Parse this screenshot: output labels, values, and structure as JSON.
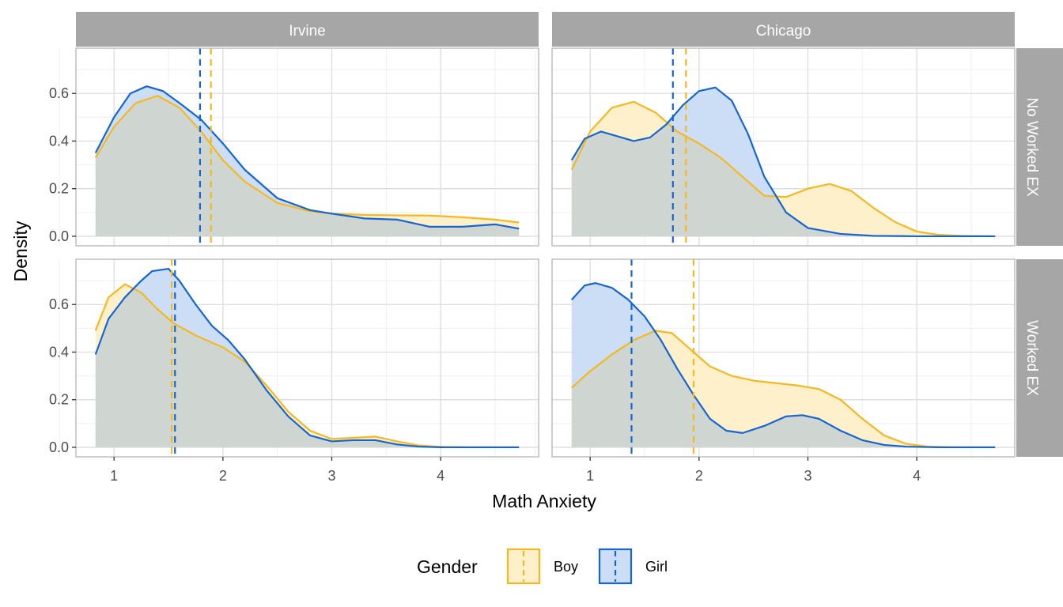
{
  "chart_data": {
    "type": "area",
    "xlabel": "Math Anxiety",
    "ylabel": "Density",
    "xlim": [
      0.65,
      4.9
    ],
    "ylim": [
      -0.04,
      0.79
    ],
    "x_ticks": [
      "1",
      "2",
      "3",
      "4"
    ],
    "y_ticks": [
      "0.0",
      "0.2",
      "0.4",
      "0.6"
    ],
    "columns": [
      "Irvine",
      "Chicago"
    ],
    "rows": [
      "No Worked EX",
      "Worked EX"
    ],
    "legend": {
      "title": "Gender",
      "position": "bottom",
      "entries": [
        "Boy",
        "Girl"
      ]
    },
    "colors": {
      "Boy": "#F5B820",
      "Girl": "#1566D0",
      "Boy_fill": "#FFF0CC",
      "Girl_fill": "#CCDDF6",
      "overlap_fill": "#CFD6D2",
      "strip": "#A6A6A6",
      "grid": "#DDDDDD",
      "panel_border": "#B3B3B3"
    },
    "panels": [
      {
        "column": "Irvine",
        "row": "No Worked EX",
        "means": {
          "Boy": 1.89,
          "Girl": 1.79
        },
        "series": [
          {
            "name": "Boy",
            "x": [
              0.83,
              1.0,
              1.2,
              1.4,
              1.6,
              1.8,
              2.0,
              2.2,
              2.5,
              2.8,
              3.0,
              3.3,
              3.6,
              3.9,
              4.2,
              4.5,
              4.72
            ],
            "y": [
              0.33,
              0.46,
              0.56,
              0.59,
              0.54,
              0.44,
              0.32,
              0.23,
              0.14,
              0.105,
              0.095,
              0.09,
              0.088,
              0.087,
              0.08,
              0.07,
              0.058
            ]
          },
          {
            "name": "Girl",
            "x": [
              0.83,
              1.0,
              1.15,
              1.3,
              1.45,
              1.6,
              1.8,
              2.0,
              2.2,
              2.5,
              2.8,
              3.0,
              3.3,
              3.6,
              3.9,
              4.2,
              4.5,
              4.72
            ],
            "y": [
              0.35,
              0.5,
              0.6,
              0.63,
              0.61,
              0.56,
              0.49,
              0.39,
              0.28,
              0.16,
              0.11,
              0.095,
              0.075,
              0.07,
              0.04,
              0.04,
              0.05,
              0.032
            ]
          }
        ]
      },
      {
        "column": "Chicago",
        "row": "No Worked EX",
        "means": {
          "Boy": 1.88,
          "Girl": 1.76
        },
        "series": [
          {
            "name": "Boy",
            "x": [
              0.83,
              1.0,
              1.2,
              1.4,
              1.6,
              1.8,
              2.0,
              2.2,
              2.4,
              2.6,
              2.8,
              3.0,
              3.2,
              3.4,
              3.6,
              3.8,
              4.0,
              4.2,
              4.4,
              4.72
            ],
            "y": [
              0.28,
              0.44,
              0.54,
              0.565,
              0.52,
              0.44,
              0.39,
              0.33,
              0.25,
              0.17,
              0.165,
              0.2,
              0.22,
              0.19,
              0.12,
              0.06,
              0.02,
              0.006,
              0.002,
              0.0
            ]
          },
          {
            "name": "Girl",
            "x": [
              0.83,
              0.95,
              1.1,
              1.25,
              1.4,
              1.55,
              1.7,
              1.85,
              2.0,
              2.15,
              2.3,
              2.45,
              2.6,
              2.8,
              3.0,
              3.3,
              3.6,
              4.0,
              4.4,
              4.72
            ],
            "y": [
              0.32,
              0.41,
              0.44,
              0.42,
              0.4,
              0.415,
              0.47,
              0.55,
              0.61,
              0.625,
              0.57,
              0.43,
              0.25,
              0.1,
              0.035,
              0.01,
              0.002,
              0.0,
              0.0,
              0.0
            ]
          }
        ]
      },
      {
        "column": "Irvine",
        "row": "Worked EX",
        "means": {
          "Boy": 1.53,
          "Girl": 1.56
        },
        "series": [
          {
            "name": "Boy",
            "x": [
              0.83,
              0.95,
              1.1,
              1.25,
              1.4,
              1.55,
              1.75,
              2.0,
              2.2,
              2.4,
              2.6,
              2.8,
              3.0,
              3.2,
              3.4,
              3.6,
              3.8,
              4.0,
              4.3,
              4.72
            ],
            "y": [
              0.49,
              0.63,
              0.685,
              0.65,
              0.58,
              0.52,
              0.47,
              0.42,
              0.36,
              0.26,
              0.15,
              0.07,
              0.035,
              0.04,
              0.045,
              0.025,
              0.008,
              0.002,
              0.0,
              0.0
            ]
          },
          {
            "name": "Girl",
            "x": [
              0.83,
              0.95,
              1.1,
              1.25,
              1.35,
              1.5,
              1.6,
              1.75,
              1.9,
              2.05,
              2.2,
              2.4,
              2.6,
              2.8,
              3.0,
              3.2,
              3.4,
              3.6,
              3.8,
              4.0,
              4.3,
              4.72
            ],
            "y": [
              0.39,
              0.54,
              0.63,
              0.7,
              0.74,
              0.75,
              0.7,
              0.6,
              0.51,
              0.45,
              0.37,
              0.24,
              0.13,
              0.05,
              0.025,
              0.03,
              0.03,
              0.012,
              0.003,
              0.0,
              0.0,
              0.0
            ]
          }
        ]
      },
      {
        "column": "Chicago",
        "row": "Worked EX",
        "means": {
          "Boy": 1.95,
          "Girl": 1.38
        },
        "series": [
          {
            "name": "Boy",
            "x": [
              0.83,
              1.0,
              1.2,
              1.4,
              1.6,
              1.75,
              1.9,
              2.1,
              2.3,
              2.5,
              2.7,
              2.9,
              3.1,
              3.3,
              3.5,
              3.7,
              3.9,
              4.1,
              4.4,
              4.72
            ],
            "y": [
              0.25,
              0.32,
              0.39,
              0.45,
              0.49,
              0.48,
              0.42,
              0.34,
              0.3,
              0.28,
              0.27,
              0.26,
              0.245,
              0.2,
              0.12,
              0.05,
              0.015,
              0.003,
              0.0,
              0.0
            ]
          },
          {
            "name": "Girl",
            "x": [
              0.83,
              0.95,
              1.05,
              1.2,
              1.35,
              1.5,
              1.65,
              1.8,
              1.95,
              2.1,
              2.25,
              2.4,
              2.6,
              2.8,
              2.95,
              3.1,
              3.3,
              3.5,
              3.7,
              3.9,
              4.2,
              4.72
            ],
            "y": [
              0.62,
              0.68,
              0.69,
              0.67,
              0.62,
              0.55,
              0.45,
              0.33,
              0.22,
              0.12,
              0.07,
              0.06,
              0.09,
              0.13,
              0.135,
              0.12,
              0.07,
              0.03,
              0.01,
              0.003,
              0.0,
              0.0
            ]
          }
        ]
      }
    ]
  }
}
